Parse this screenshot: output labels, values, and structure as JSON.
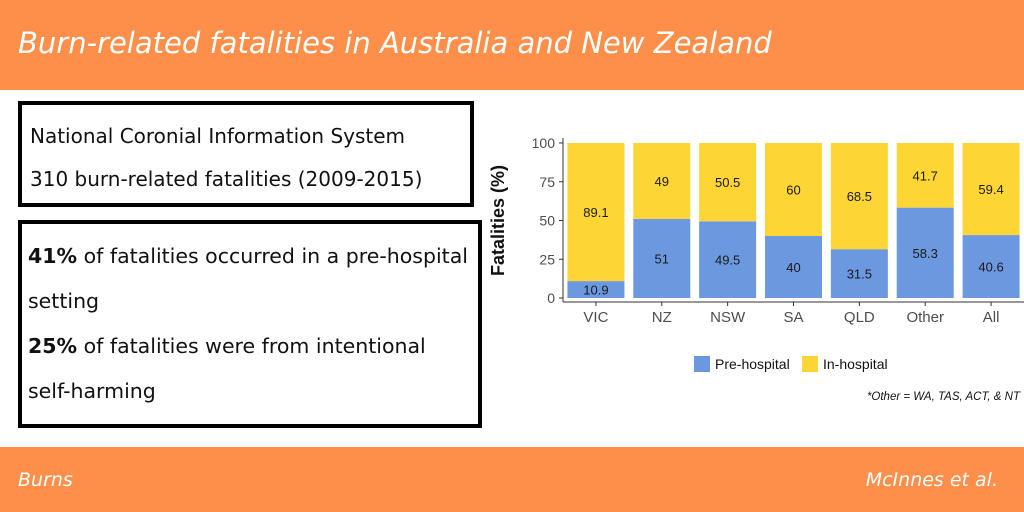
{
  "header": {
    "title": "Burn-related fatalities in Australia and New Zealand"
  },
  "info_box": {
    "line1": "National Coronial Information System",
    "line2": "310 burn-related fatalities (2009-2015)"
  },
  "findings": {
    "item1_bold": "41%",
    "item1_rest": " of fatalities occurred in a pre-hospital setting",
    "item2_bold": "25%",
    "item2_rest": " of fatalities were from intentional self-harming"
  },
  "footer": {
    "left": "Burns",
    "right": "McInnes et al."
  },
  "note": "*Other = WA, TAS, ACT, & NT",
  "chart_data": {
    "type": "bar",
    "stacked": true,
    "categories": [
      "VIC",
      "NZ",
      "NSW",
      "SA",
      "QLD",
      "Other",
      "All"
    ],
    "series": [
      {
        "name": "Pre-hospital",
        "values": [
          10.9,
          51,
          49.5,
          40,
          31.5,
          58.3,
          40.6
        ],
        "color": "#6c98e0"
      },
      {
        "name": "In-hospital",
        "values": [
          89.1,
          49,
          50.5,
          60,
          68.5,
          41.7,
          59.4
        ],
        "color": "#fdd535"
      }
    ],
    "ylabel": "Fatalities (%)",
    "xlabel": "",
    "ylim": [
      0,
      100
    ],
    "yticks": [
      0,
      25,
      50,
      75,
      100
    ],
    "grid": false,
    "legend_position": "bottom"
  }
}
